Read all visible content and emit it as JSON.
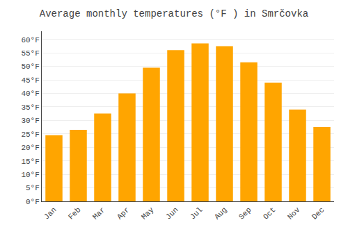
{
  "chart_data": {
    "type": "bar",
    "title": "Average monthly temperatures (°F ) in Smrčovka",
    "categories": [
      "Jan",
      "Feb",
      "Mar",
      "Apr",
      "May",
      "Jun",
      "Jul",
      "Aug",
      "Sep",
      "Oct",
      "Nov",
      "Dec"
    ],
    "values": [
      24.5,
      26.5,
      32.5,
      40.0,
      49.5,
      56.0,
      58.5,
      57.5,
      51.5,
      44.0,
      34.0,
      27.5
    ],
    "color": "#FFA500",
    "ylim": [
      0,
      63
    ],
    "yticks": [
      {
        "value": 0,
        "label": "0°F"
      },
      {
        "value": 5,
        "label": "5°F"
      },
      {
        "value": 10,
        "label": "10°F"
      },
      {
        "value": 15,
        "label": "15°F"
      },
      {
        "value": 20,
        "label": "20°F"
      },
      {
        "value": 25,
        "label": "25°F"
      },
      {
        "value": 30,
        "label": "30°F"
      },
      {
        "value": 35,
        "label": "35°F"
      },
      {
        "value": 40,
        "label": "40°F"
      },
      {
        "value": 45,
        "label": "45°F"
      },
      {
        "value": 50,
        "label": "50°F"
      },
      {
        "value": 55,
        "label": "55°F"
      },
      {
        "value": 60,
        "label": "60°F"
      }
    ],
    "grid": true
  }
}
